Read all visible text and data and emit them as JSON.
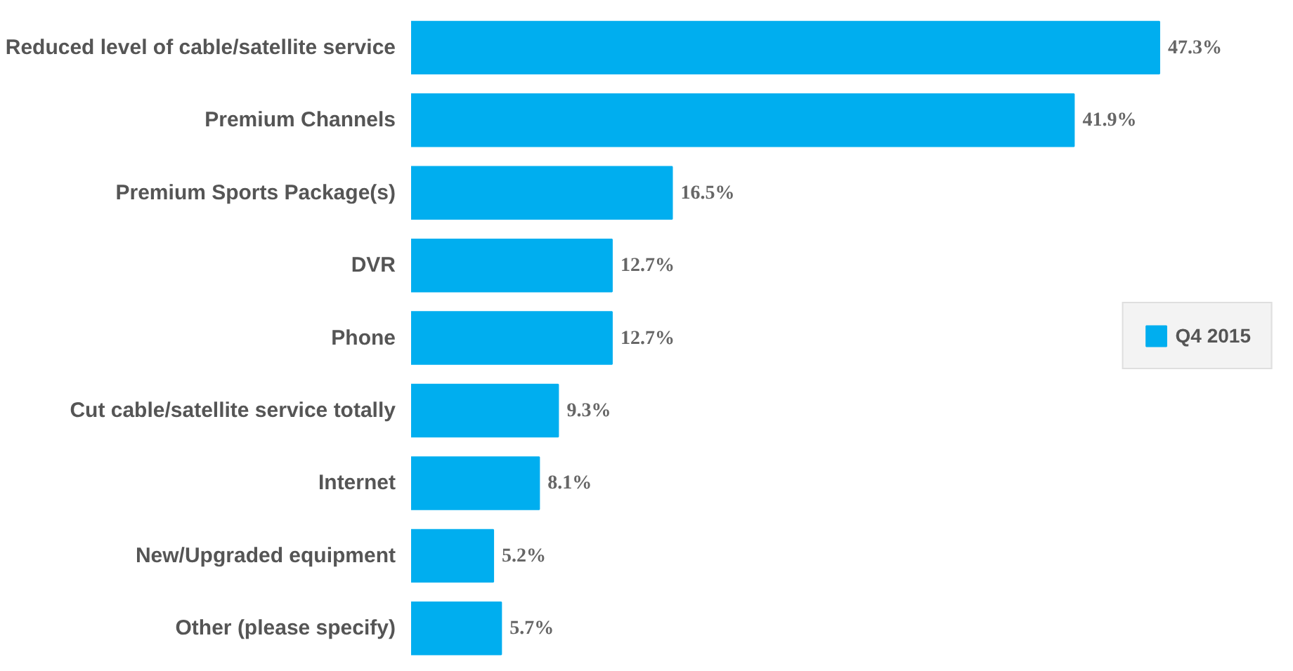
{
  "chart_data": {
    "type": "bar",
    "orientation": "horizontal",
    "categories": [
      "Reduced level of cable/satellite service",
      "Premium Channels",
      "Premium Sports Package(s)",
      "DVR",
      "Phone",
      "Cut cable/satellite service totally",
      "Internet",
      "New/Upgraded equipment",
      "Other (please specify)"
    ],
    "series": [
      {
        "name": "Q4 2015",
        "color": "#00aeef",
        "values": [
          47.3,
          41.9,
          16.5,
          12.7,
          12.7,
          9.3,
          8.1,
          5.2,
          5.7
        ],
        "value_labels": [
          "47.3%",
          "41.9%",
          "16.5%",
          "12.7%",
          "12.7%",
          "9.3%",
          "8.1%",
          "5.2%",
          "5.7%"
        ]
      }
    ],
    "legend": "right",
    "grid": false
  }
}
